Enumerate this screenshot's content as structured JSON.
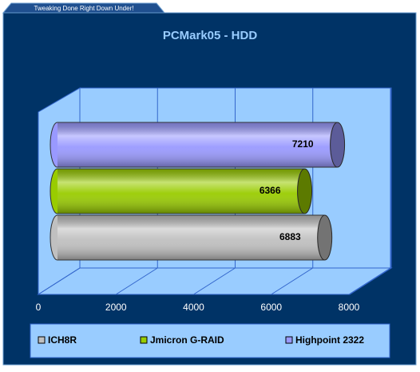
{
  "banner": "Tweaking Done Right Down Under!",
  "chart_data": {
    "type": "bar",
    "orientation": "horizontal",
    "title": "PCMark05 - HDD",
    "series": [
      {
        "name": "ICH8R",
        "color": "#c0c0c0",
        "values": [
          6883
        ]
      },
      {
        "name": "Jmicron G-RAID",
        "color": "#99cc00",
        "values": [
          6366
        ]
      },
      {
        "name": "Highpoint 2322",
        "color": "#9999ff",
        "values": [
          7210
        ]
      }
    ],
    "xlim": [
      0,
      8000
    ],
    "xticks": [
      0,
      2000,
      4000,
      6000,
      8000
    ],
    "grid": true,
    "legend": "bottom"
  }
}
